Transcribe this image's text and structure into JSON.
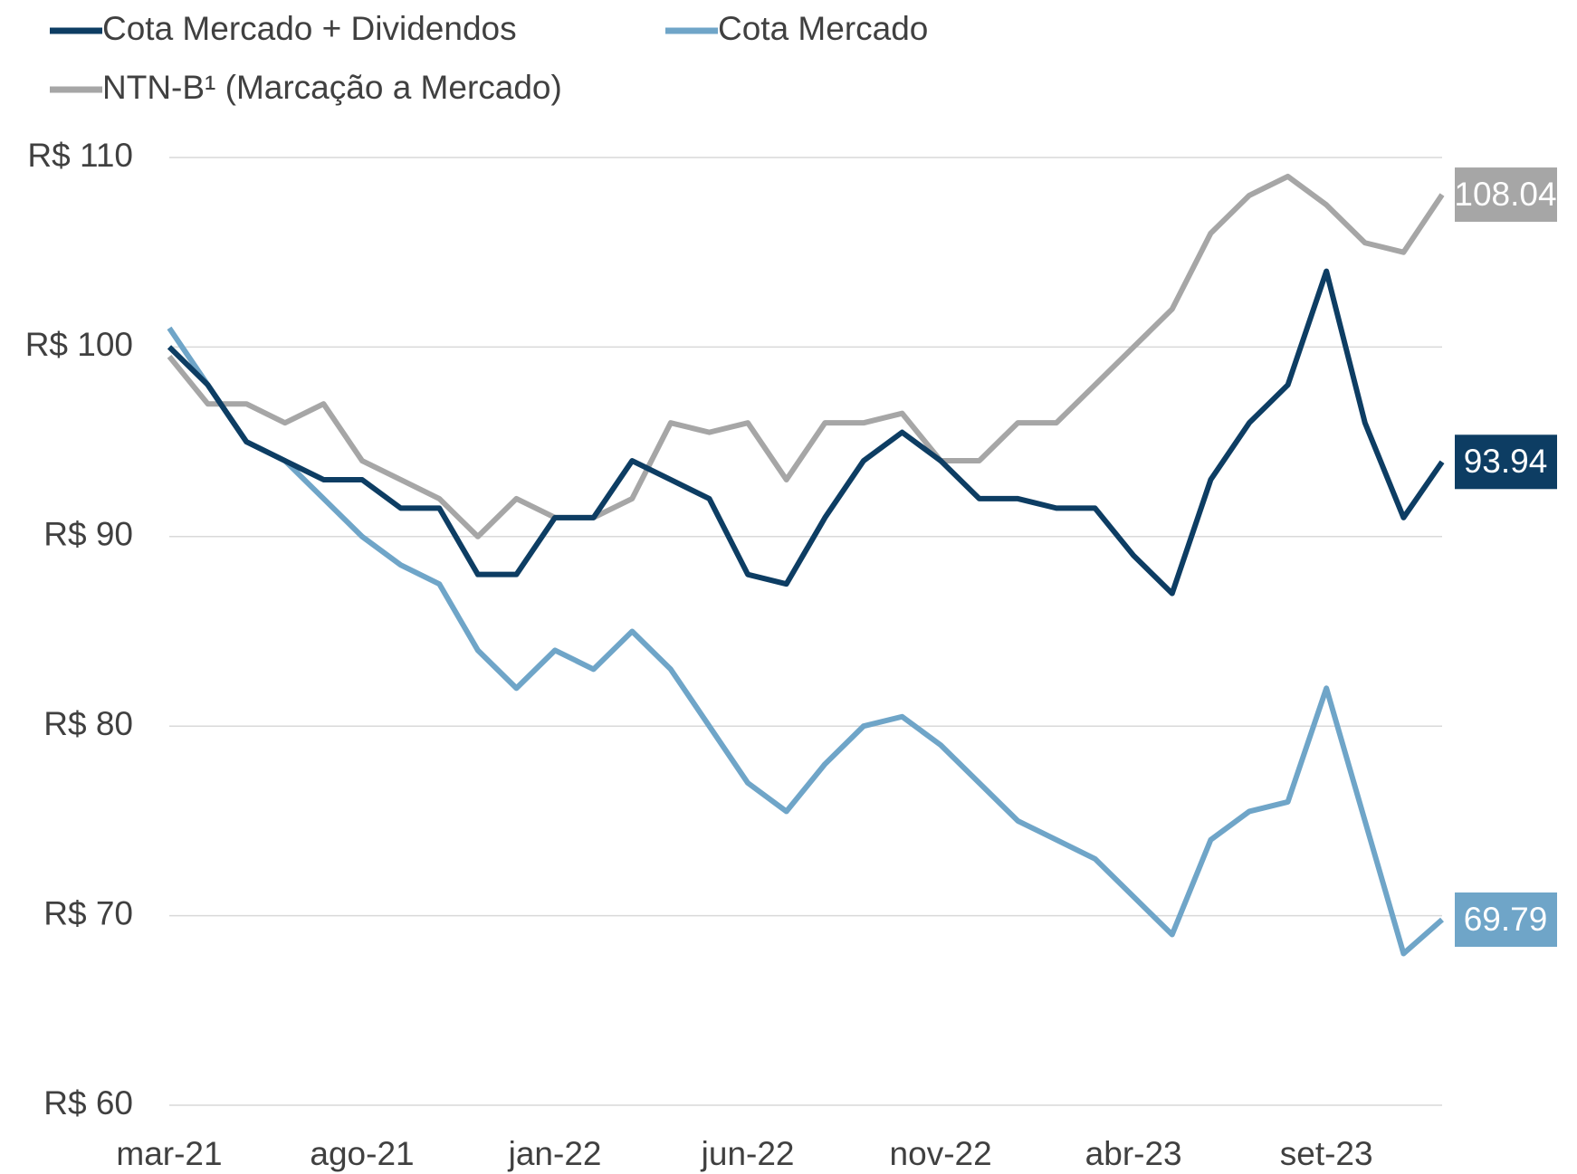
{
  "chart_data": {
    "type": "line",
    "categories": [
      "mar-21",
      null,
      null,
      null,
      null,
      "ago-21",
      null,
      null,
      null,
      null,
      "jan-22",
      null,
      null,
      null,
      null,
      "jun-22",
      null,
      null,
      null,
      null,
      "nov-22",
      null,
      null,
      null,
      null,
      "abr-23",
      null,
      null,
      null,
      null,
      "set-23",
      null,
      null,
      null
    ],
    "series": [
      {
        "name": "Cota Mercado + Dividendos",
        "color": "#0d3d63",
        "values": [
          100,
          98,
          95,
          94,
          93,
          93,
          91.5,
          91.5,
          88,
          88,
          91,
          91,
          94,
          93,
          92,
          88,
          87.5,
          91,
          94,
          95.5,
          94,
          92,
          92,
          91.5,
          91.5,
          89,
          87,
          93,
          96,
          98,
          104,
          96,
          91,
          93.94
        ]
      },
      {
        "name": "Cota Mercado",
        "color": "#6fa5c8",
        "values": [
          101,
          98,
          95,
          94,
          92,
          90,
          88.5,
          87.5,
          84,
          82,
          84,
          83,
          85,
          83,
          80,
          77,
          75.5,
          78,
          80,
          80.5,
          79,
          77,
          75,
          74,
          73,
          71,
          69,
          74,
          75.5,
          76,
          82,
          75,
          68,
          69.79
        ]
      },
      {
        "name": "NTN-B¹ (Marcação a Mercado)",
        "color": "#a6a6a6",
        "values": [
          99.5,
          97,
          97,
          96,
          97,
          94,
          93,
          92,
          90,
          92,
          91,
          91,
          92,
          96,
          95.5,
          96,
          93,
          96,
          96,
          96.5,
          94,
          94,
          96,
          96,
          98,
          100,
          102,
          106,
          108,
          109,
          107.5,
          105.5,
          105,
          108.04
        ]
      }
    ],
    "ylim": [
      60,
      110
    ],
    "yticks": [
      {
        "value": 60,
        "label": "R$ 60"
      },
      {
        "value": 70,
        "label": "R$ 70"
      },
      {
        "value": 80,
        "label": "R$ 80"
      },
      {
        "value": 90,
        "label": "R$ 90"
      },
      {
        "value": 100,
        "label": "R$ 100"
      },
      {
        "value": 110,
        "label": "R$ 110"
      }
    ],
    "grid": true
  }
}
